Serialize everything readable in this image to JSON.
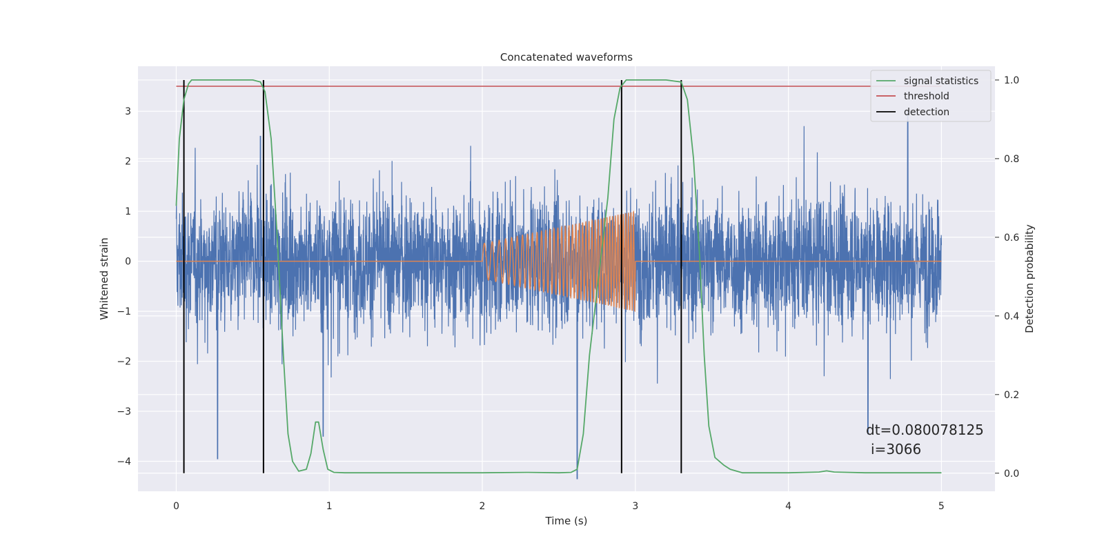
{
  "chart_data": {
    "type": "line",
    "title": "Concatenated waveforms",
    "xlabel": "Time (s)",
    "ylabel": "Whitened strain",
    "y2label": "Detection probability",
    "xlim": [
      -0.25,
      5.35
    ],
    "ylim": [
      -4.6,
      3.9
    ],
    "y2lim": [
      -0.046,
      1.035
    ],
    "xticks": [
      0,
      1,
      2,
      3,
      4,
      5
    ],
    "yticks": [
      -4,
      -3,
      -2,
      -1,
      0,
      1,
      2,
      3
    ],
    "y2ticks": [
      0.0,
      0.2,
      0.4,
      0.6,
      0.8,
      1.0
    ],
    "xtick_labels": [
      "0",
      "1",
      "2",
      "3",
      "4",
      "5"
    ],
    "ytick_labels": [
      "−4",
      "−3",
      "−2",
      "−1",
      "0",
      "1",
      "2",
      "3"
    ],
    "y2tick_labels": [
      "0.0",
      "0.2",
      "0.4",
      "0.6",
      "0.8",
      "1.0"
    ],
    "grid": true,
    "legend_position": "top-right",
    "annotation": {
      "line1": "dt=0.080078125",
      "line2": "i=3066"
    },
    "series": [
      {
        "key": "strain",
        "axis": "left",
        "color": "#4c72b0",
        "description": "noise-dominated whitened strain, 0 to 5 s, roughly within ±2 with spikes",
        "x_range": [
          0,
          5
        ],
        "notable_extremes": [
          {
            "x": 0.27,
            "y": -3.95
          },
          {
            "x": 0.96,
            "y": -3.5
          },
          {
            "x": 2.62,
            "y": -4.35
          },
          {
            "x": 4.52,
            "y": -3.45
          },
          {
            "x": 0.55,
            "y": 2.5
          },
          {
            "x": 4.78,
            "y": 3.0
          }
        ]
      },
      {
        "key": "injected_signal",
        "axis": "left",
        "color": "#dd8452",
        "x_range": [
          0,
          5
        ],
        "chirp_start": 2.0,
        "chirp_end": 3.0,
        "amp_start": 0.35,
        "amp_end": 1.0
      },
      {
        "name": "signal statistics",
        "key": "signal_statistics",
        "axis": "right",
        "color": "#55a868",
        "x": [
          0.0,
          0.02,
          0.05,
          0.08,
          0.1,
          0.15,
          0.3,
          0.5,
          0.55,
          0.58,
          0.62,
          0.66,
          0.7,
          0.73,
          0.76,
          0.8,
          0.85,
          0.88,
          0.91,
          0.93,
          0.96,
          0.99,
          1.03,
          1.1,
          1.5,
          2.0,
          2.3,
          2.5,
          2.58,
          2.62,
          2.66,
          2.7,
          2.76,
          2.82,
          2.86,
          2.9,
          2.94,
          3.0,
          3.2,
          3.3,
          3.34,
          3.38,
          3.42,
          3.45,
          3.48,
          3.52,
          3.58,
          3.62,
          3.7,
          4.0,
          4.2,
          4.25,
          4.3,
          4.5,
          5.0
        ],
        "y": [
          0.68,
          0.85,
          0.95,
          0.99,
          1.0,
          1.0,
          1.0,
          1.0,
          0.995,
          0.97,
          0.85,
          0.6,
          0.3,
          0.1,
          0.03,
          0.005,
          0.01,
          0.05,
          0.13,
          0.13,
          0.06,
          0.01,
          0.002,
          0.001,
          0.001,
          0.001,
          0.002,
          0.001,
          0.002,
          0.01,
          0.1,
          0.3,
          0.5,
          0.7,
          0.9,
          0.98,
          1.0,
          1.0,
          1.0,
          0.995,
          0.95,
          0.8,
          0.55,
          0.3,
          0.12,
          0.04,
          0.02,
          0.01,
          0.001,
          0.001,
          0.003,
          0.006,
          0.003,
          0.001,
          0.001
        ]
      },
      {
        "name": "threshold",
        "key": "threshold",
        "axis": "left",
        "color": "#c44e52",
        "x": [
          0,
          5
        ],
        "y": [
          3.5,
          3.5
        ]
      },
      {
        "name": "detection",
        "key": "detection",
        "axis": "right",
        "color": "#000000",
        "x": [
          0.05,
          0.57,
          2.91,
          3.3
        ]
      }
    ]
  }
}
